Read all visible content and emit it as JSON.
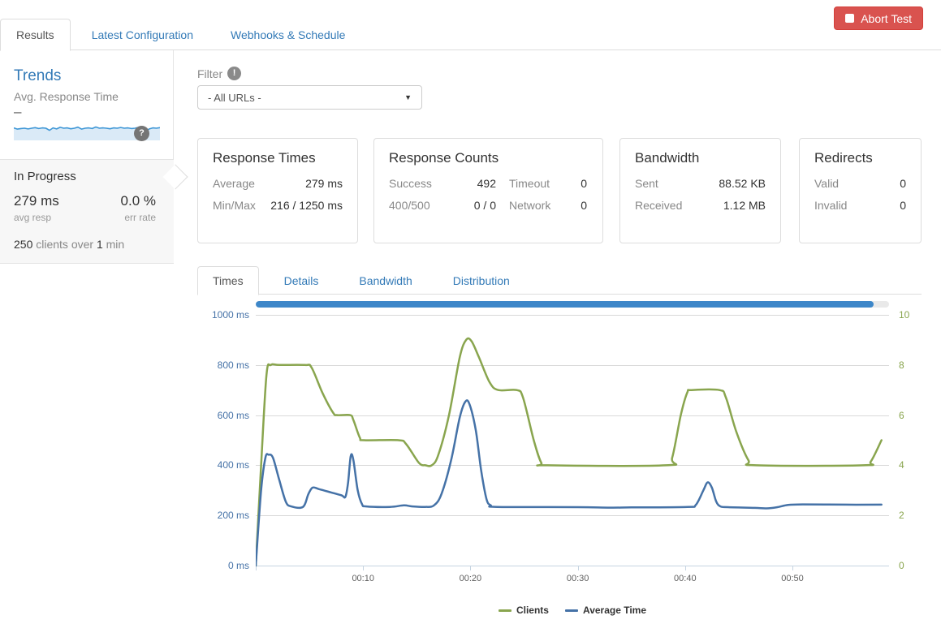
{
  "header": {
    "tabs": [
      {
        "label": "Results",
        "active": true
      },
      {
        "label": "Latest Configuration",
        "active": false
      },
      {
        "label": "Webhooks & Schedule",
        "active": false
      }
    ],
    "abort_button": {
      "label": "Abort Test"
    }
  },
  "sidebar": {
    "title": "Trends",
    "subtitle": "Avg. Response Time",
    "trend_value": "–",
    "help_icon": "?",
    "sparkline": [
      0.52,
      0.45,
      0.48,
      0.5,
      0.46,
      0.5,
      0.53,
      0.48,
      0.52,
      0.5,
      0.38,
      0.52,
      0.46,
      0.55,
      0.5,
      0.52,
      0.47,
      0.5,
      0.56,
      0.45,
      0.5,
      0.52,
      0.48,
      0.57,
      0.5,
      0.52,
      0.5,
      0.47,
      0.52,
      0.5,
      0.54,
      0.5,
      0.52,
      0.48,
      0.5,
      0.55,
      0.52,
      0.33,
      0.46,
      0.52,
      0.5,
      0.53
    ],
    "status": {
      "heading": "In Progress",
      "avg_value": "279 ms",
      "avg_label": "avg resp",
      "err_value": "0.0 %",
      "err_label": "err rate",
      "clients_num": "250",
      "clients_mid": " clients over ",
      "clients_dur": "1",
      "clients_suffix": " min"
    }
  },
  "filter": {
    "label": "Filter",
    "badge": "!",
    "selected_option": "- All URLs -"
  },
  "cards": [
    {
      "title": "Response Times",
      "rows": [
        {
          "label": "Average",
          "value": "279 ms"
        },
        {
          "label": "Min/Max",
          "value": "216 / 1250 ms"
        }
      ]
    },
    {
      "title": "Response Counts",
      "rows": [
        {
          "label": "Success",
          "value": "492"
        },
        {
          "label": "Timeout",
          "value": "0"
        },
        {
          "label": "400/500",
          "value": "0 / 0"
        },
        {
          "label": "Network",
          "value": "0"
        }
      ]
    },
    {
      "title": "Bandwidth",
      "rows": [
        {
          "label": "Sent",
          "value": "88.52 KB"
        },
        {
          "label": "Received",
          "value": "1.12 MB"
        }
      ]
    },
    {
      "title": "Redirects",
      "rows": [
        {
          "label": "Valid",
          "value": "0"
        },
        {
          "label": "Invalid",
          "value": "0"
        }
      ]
    }
  ],
  "chart_tabs": [
    {
      "label": "Times",
      "active": true
    },
    {
      "label": "Details",
      "active": false
    },
    {
      "label": "Bandwidth",
      "active": false
    },
    {
      "label": "Distribution",
      "active": false
    }
  ],
  "chart_data": {
    "type": "line",
    "title": "",
    "progress_fraction": 0.975,
    "progress_color": "#3d87c9",
    "grid_color": "#d8d8d8",
    "axisline_color": "#c6d4e1",
    "xlim": [
      0,
      59
    ],
    "x_ticks": [
      {
        "t": 10,
        "label": "00:10"
      },
      {
        "t": 20,
        "label": "00:20"
      },
      {
        "t": 30,
        "label": "00:30"
      },
      {
        "t": 40,
        "label": "00:40"
      },
      {
        "t": 50,
        "label": "00:50"
      }
    ],
    "left_axis": {
      "label_color": "#4572A7",
      "lim": [
        0,
        1000
      ],
      "ticks": [
        {
          "v": 0,
          "label": "0 ms"
        },
        {
          "v": 200,
          "label": "200 ms"
        },
        {
          "v": 400,
          "label": "400 ms"
        },
        {
          "v": 600,
          "label": "600 ms"
        },
        {
          "v": 800,
          "label": "800 ms"
        },
        {
          "v": 1000,
          "label": "1000 ms"
        }
      ]
    },
    "right_axis": {
      "label_color": "#89A54E",
      "lim": [
        0,
        10
      ],
      "ticks": [
        {
          "v": 0,
          "label": "0"
        },
        {
          "v": 2,
          "label": "2"
        },
        {
          "v": 4,
          "label": "4"
        },
        {
          "v": 6,
          "label": "6"
        },
        {
          "v": 8,
          "label": "8"
        },
        {
          "v": 10,
          "label": "10"
        }
      ]
    },
    "series": [
      {
        "name": "Clients",
        "color": "#89A54E",
        "axis": "right",
        "points": [
          [
            0,
            0
          ],
          [
            0.5,
            4
          ],
          [
            1,
            7.6
          ],
          [
            1.4,
            8
          ],
          [
            2.2,
            8
          ],
          [
            4.6,
            8
          ],
          [
            5.2,
            7.9
          ],
          [
            6.2,
            6.9
          ],
          [
            7.2,
            6.1
          ],
          [
            7.6,
            6
          ],
          [
            8.8,
            6
          ],
          [
            9.1,
            5.8
          ],
          [
            9.7,
            5.1
          ],
          [
            10.1,
            5
          ],
          [
            13.3,
            5
          ],
          [
            14,
            4.85
          ],
          [
            15.2,
            4.1
          ],
          [
            15.8,
            4
          ],
          [
            16.4,
            4
          ],
          [
            17,
            4.4
          ],
          [
            18,
            6
          ],
          [
            19,
            8.3
          ],
          [
            19.6,
            9
          ],
          [
            20.1,
            8.95
          ],
          [
            20.8,
            8.3
          ],
          [
            21.8,
            7.3
          ],
          [
            22.6,
            7
          ],
          [
            24.3,
            7
          ],
          [
            24.9,
            6.7
          ],
          [
            25.9,
            5
          ],
          [
            26.6,
            4.1
          ],
          [
            27.2,
            4
          ],
          [
            38.2,
            4
          ],
          [
            38.8,
            4.3
          ],
          [
            39.6,
            6
          ],
          [
            40.2,
            6.9
          ],
          [
            40.6,
            7
          ],
          [
            43.2,
            7
          ],
          [
            43.8,
            6.7
          ],
          [
            44.8,
            5.3
          ],
          [
            45.9,
            4.2
          ],
          [
            46.6,
            4
          ],
          [
            56.6,
            4
          ],
          [
            57.3,
            4.15
          ],
          [
            58.3,
            5
          ]
        ]
      },
      {
        "name": "Average Time",
        "color": "#4572A7",
        "axis": "left",
        "points": [
          [
            0,
            0
          ],
          [
            0.5,
            300
          ],
          [
            0.9,
            430
          ],
          [
            1.2,
            442
          ],
          [
            1.6,
            430
          ],
          [
            2.2,
            340
          ],
          [
            2.8,
            255
          ],
          [
            3.3,
            236
          ],
          [
            4.4,
            234
          ],
          [
            4.9,
            285
          ],
          [
            5.3,
            311
          ],
          [
            5.9,
            305
          ],
          [
            7,
            292
          ],
          [
            8,
            280
          ],
          [
            8.35,
            274
          ],
          [
            8.6,
            330
          ],
          [
            8.85,
            437
          ],
          [
            9.1,
            420
          ],
          [
            9.5,
            300
          ],
          [
            9.9,
            245
          ],
          [
            10.3,
            236
          ],
          [
            12.5,
            234
          ],
          [
            13.8,
            240
          ],
          [
            14.6,
            236
          ],
          [
            15.8,
            234
          ],
          [
            16.6,
            240
          ],
          [
            17.3,
            285
          ],
          [
            18.2,
            420
          ],
          [
            19,
            590
          ],
          [
            19.5,
            652
          ],
          [
            19.9,
            645
          ],
          [
            20.5,
            540
          ],
          [
            21,
            380
          ],
          [
            21.5,
            265
          ],
          [
            21.9,
            240
          ],
          [
            22.5,
            234
          ],
          [
            30,
            233
          ],
          [
            33,
            231
          ],
          [
            35,
            232
          ],
          [
            40.2,
            234
          ],
          [
            41,
            242
          ],
          [
            41.7,
            300
          ],
          [
            42.1,
            332
          ],
          [
            42.5,
            310
          ],
          [
            42.9,
            255
          ],
          [
            43.3,
            236
          ],
          [
            44,
            233
          ],
          [
            46.5,
            230
          ],
          [
            47.6,
            228
          ],
          [
            48.6,
            233
          ],
          [
            49.6,
            242
          ],
          [
            51,
            244
          ],
          [
            55,
            243
          ],
          [
            58.3,
            243
          ]
        ]
      }
    ],
    "legend": [
      "Clients",
      "Average Time"
    ],
    "legend_position": "bottom-center"
  }
}
